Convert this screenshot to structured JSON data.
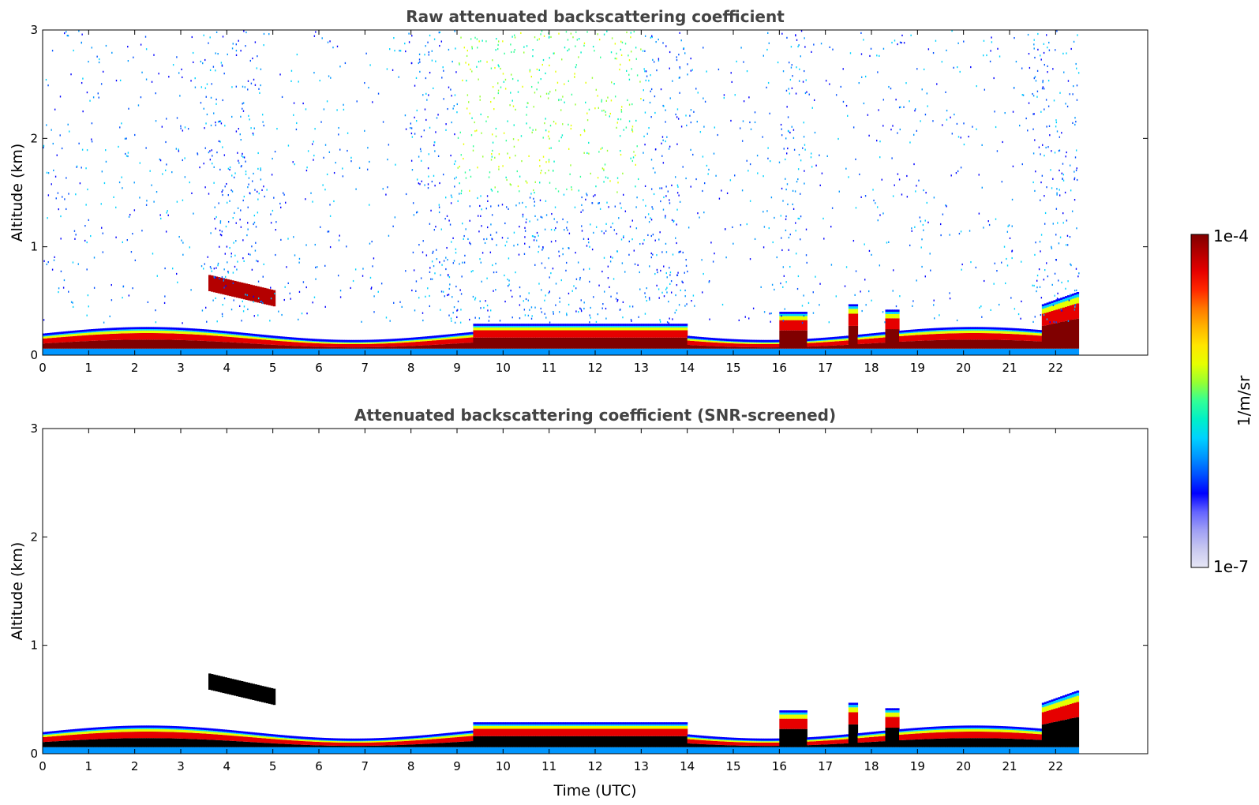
{
  "chart_data": [
    {
      "type": "heatmap",
      "title": "Raw attenuated backscattering coefficient",
      "xlabel": "",
      "ylabel": "Altitude (km)",
      "xlim": [
        0,
        24
      ],
      "ylim": [
        0,
        3
      ],
      "xticks": [
        "0",
        "1",
        "2",
        "3",
        "4",
        "5",
        "6",
        "7",
        "8",
        "9",
        "10",
        "11",
        "12",
        "13",
        "14",
        "15",
        "16",
        "17",
        "18",
        "19",
        "20",
        "21",
        "22"
      ],
      "yticks": [
        "0",
        "1",
        "2",
        "3"
      ],
      "data_end_hour": 22.5,
      "screened": false
    },
    {
      "type": "heatmap",
      "title": "Attenuated backscattering coefficient (SNR-screened)",
      "xlabel": "Time (UTC)",
      "ylabel": "Altitude (km)",
      "xlim": [
        0,
        24
      ],
      "ylim": [
        0,
        3
      ],
      "xticks": [
        "0",
        "1",
        "2",
        "3",
        "4",
        "5",
        "6",
        "7",
        "8",
        "9",
        "10",
        "11",
        "12",
        "13",
        "14",
        "15",
        "16",
        "17",
        "18",
        "19",
        "20",
        "21",
        "22"
      ],
      "yticks": [
        "0",
        "1",
        "2",
        "3"
      ],
      "data_end_hour": 22.5,
      "screened": true
    }
  ],
  "colorbar": {
    "label": "1/m/sr",
    "max_label": "1e-4",
    "min_label": "1e-7",
    "colors": [
      "#e6e6f5",
      "#c8c8f0",
      "#a0a0f5",
      "#6464ff",
      "#0000ff",
      "#0050ff",
      "#0096ff",
      "#00d2ff",
      "#00f0c8",
      "#32ff96",
      "#96ff32",
      "#e6ff00",
      "#ffe600",
      "#ffb400",
      "#ff7800",
      "#ff2800",
      "#e60000",
      "#b40000",
      "#800000"
    ]
  }
}
